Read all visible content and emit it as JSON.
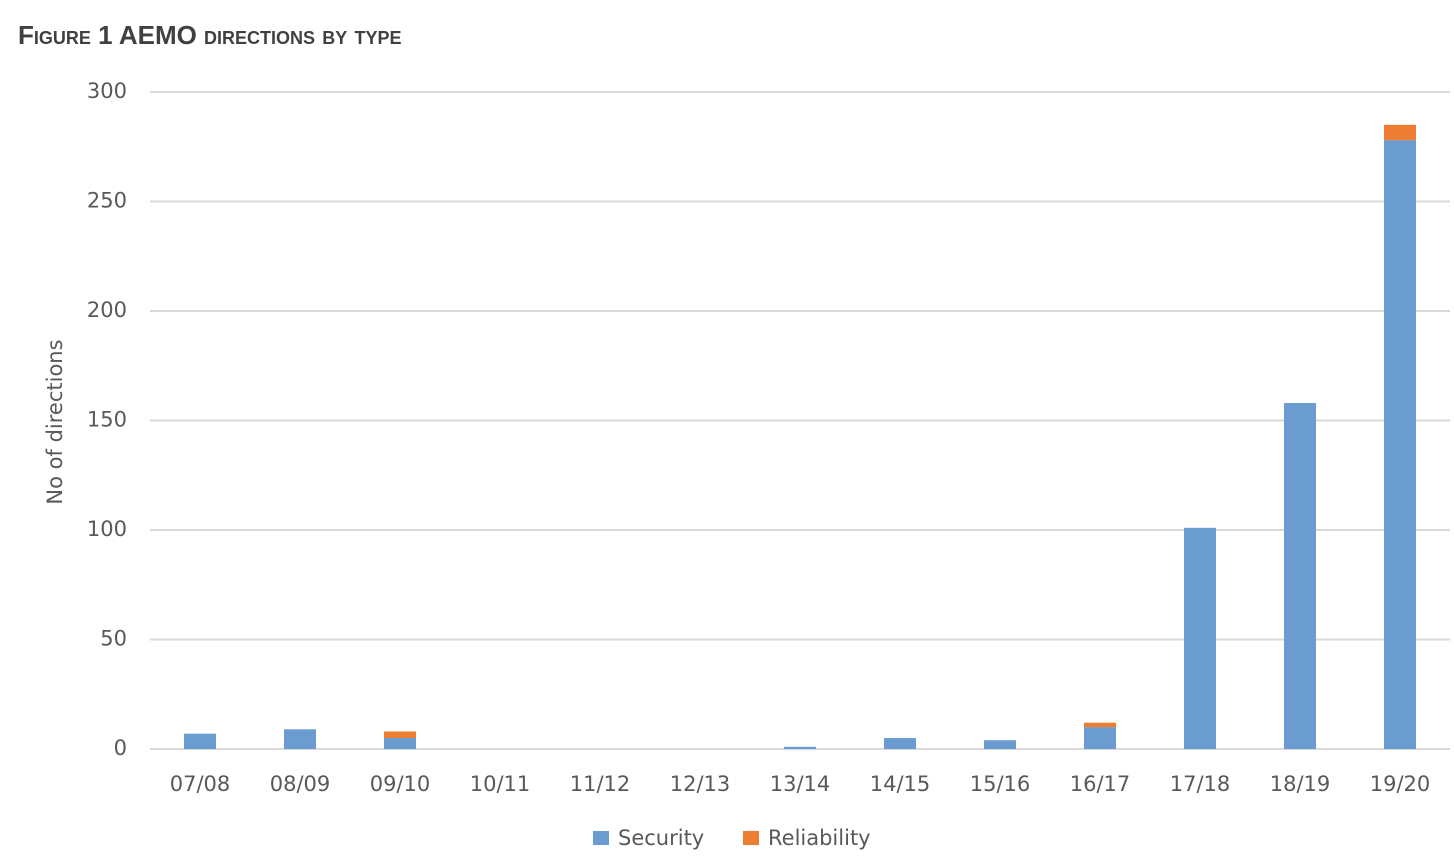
{
  "chart_data": {
    "type": "bar",
    "stacked": true,
    "title": "Figure 1 AEMO directions by type",
    "y_label": "No of directions",
    "categories": [
      "07/08",
      "08/09",
      "09/10",
      "10/11",
      "11/12",
      "12/13",
      "13/14",
      "14/15",
      "15/16",
      "16/17",
      "17/18",
      "18/19",
      "19/20"
    ],
    "series": [
      {
        "name": "Security",
        "color": "#6a9bd1",
        "values": [
          7,
          9,
          5,
          0,
          0,
          0,
          1,
          5,
          4,
          10,
          101,
          158,
          278
        ]
      },
      {
        "name": "Reliability",
        "color": "#ed7d31",
        "values": [
          0,
          0,
          3,
          0,
          0,
          0,
          0,
          0,
          0,
          2,
          0,
          0,
          7
        ]
      }
    ],
    "ylim": [
      0,
      300
    ],
    "yticks": [
      0,
      50,
      100,
      150,
      200,
      250,
      300
    ],
    "grid": true,
    "legend": "bottom"
  }
}
